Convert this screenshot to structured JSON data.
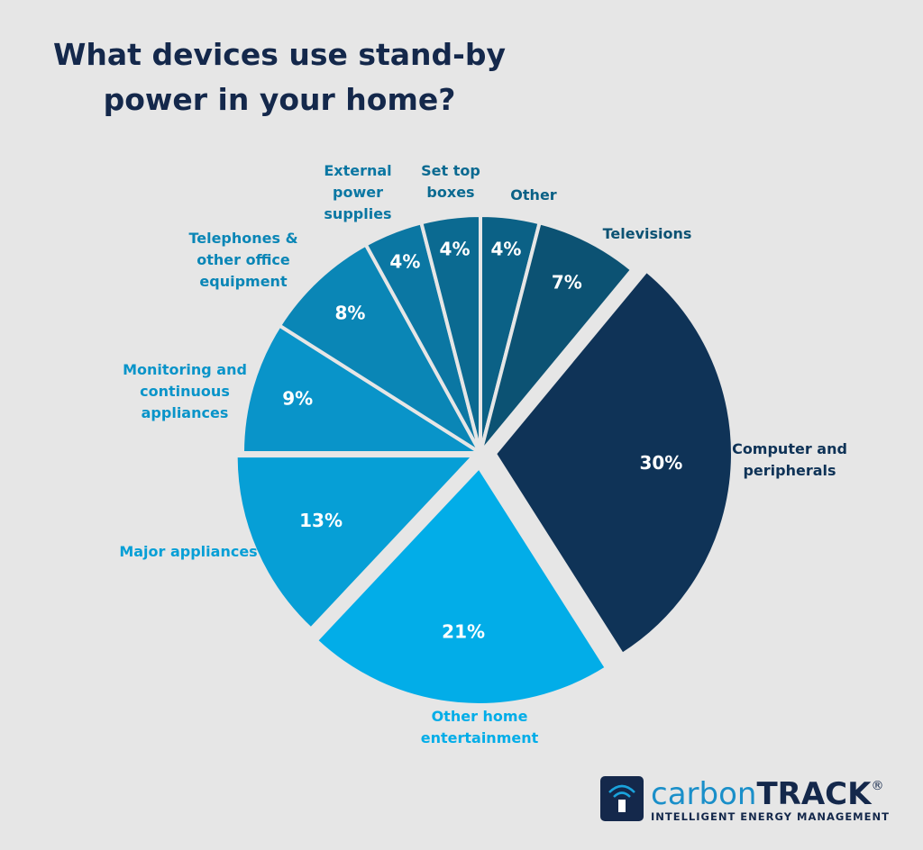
{
  "chart_data": {
    "type": "pie",
    "title": "What devices use stand-by power in your home?",
    "categories": [
      "Other",
      "Televisions",
      "Computer and\nperipherals",
      "Other home\nentertainment",
      "Major appliances",
      "Monitoring and\ncontinuous\nappliances",
      "Telephones &\nother office\nequipment",
      "External\npower\nsupplies",
      "Set top\nboxes"
    ],
    "values": [
      4,
      7,
      30,
      21,
      13,
      9,
      8,
      4,
      4
    ],
    "value_labels": [
      "4%",
      "7%",
      "30%",
      "21%",
      "13%",
      "9%",
      "8%",
      "4%",
      "4%"
    ],
    "colors": [
      "#0b6186",
      "#0c5273",
      "#0f3357",
      "#02ade8",
      "#069fd6",
      "#0994c9",
      "#0a86b6",
      "#0b77a3",
      "#0b6a91"
    ]
  },
  "logo": {
    "brand_light": "carbon",
    "brand_bold": "TRACK",
    "mark": "®",
    "tagline": "INTELLIGENT ENERGY MANAGEMENT"
  }
}
